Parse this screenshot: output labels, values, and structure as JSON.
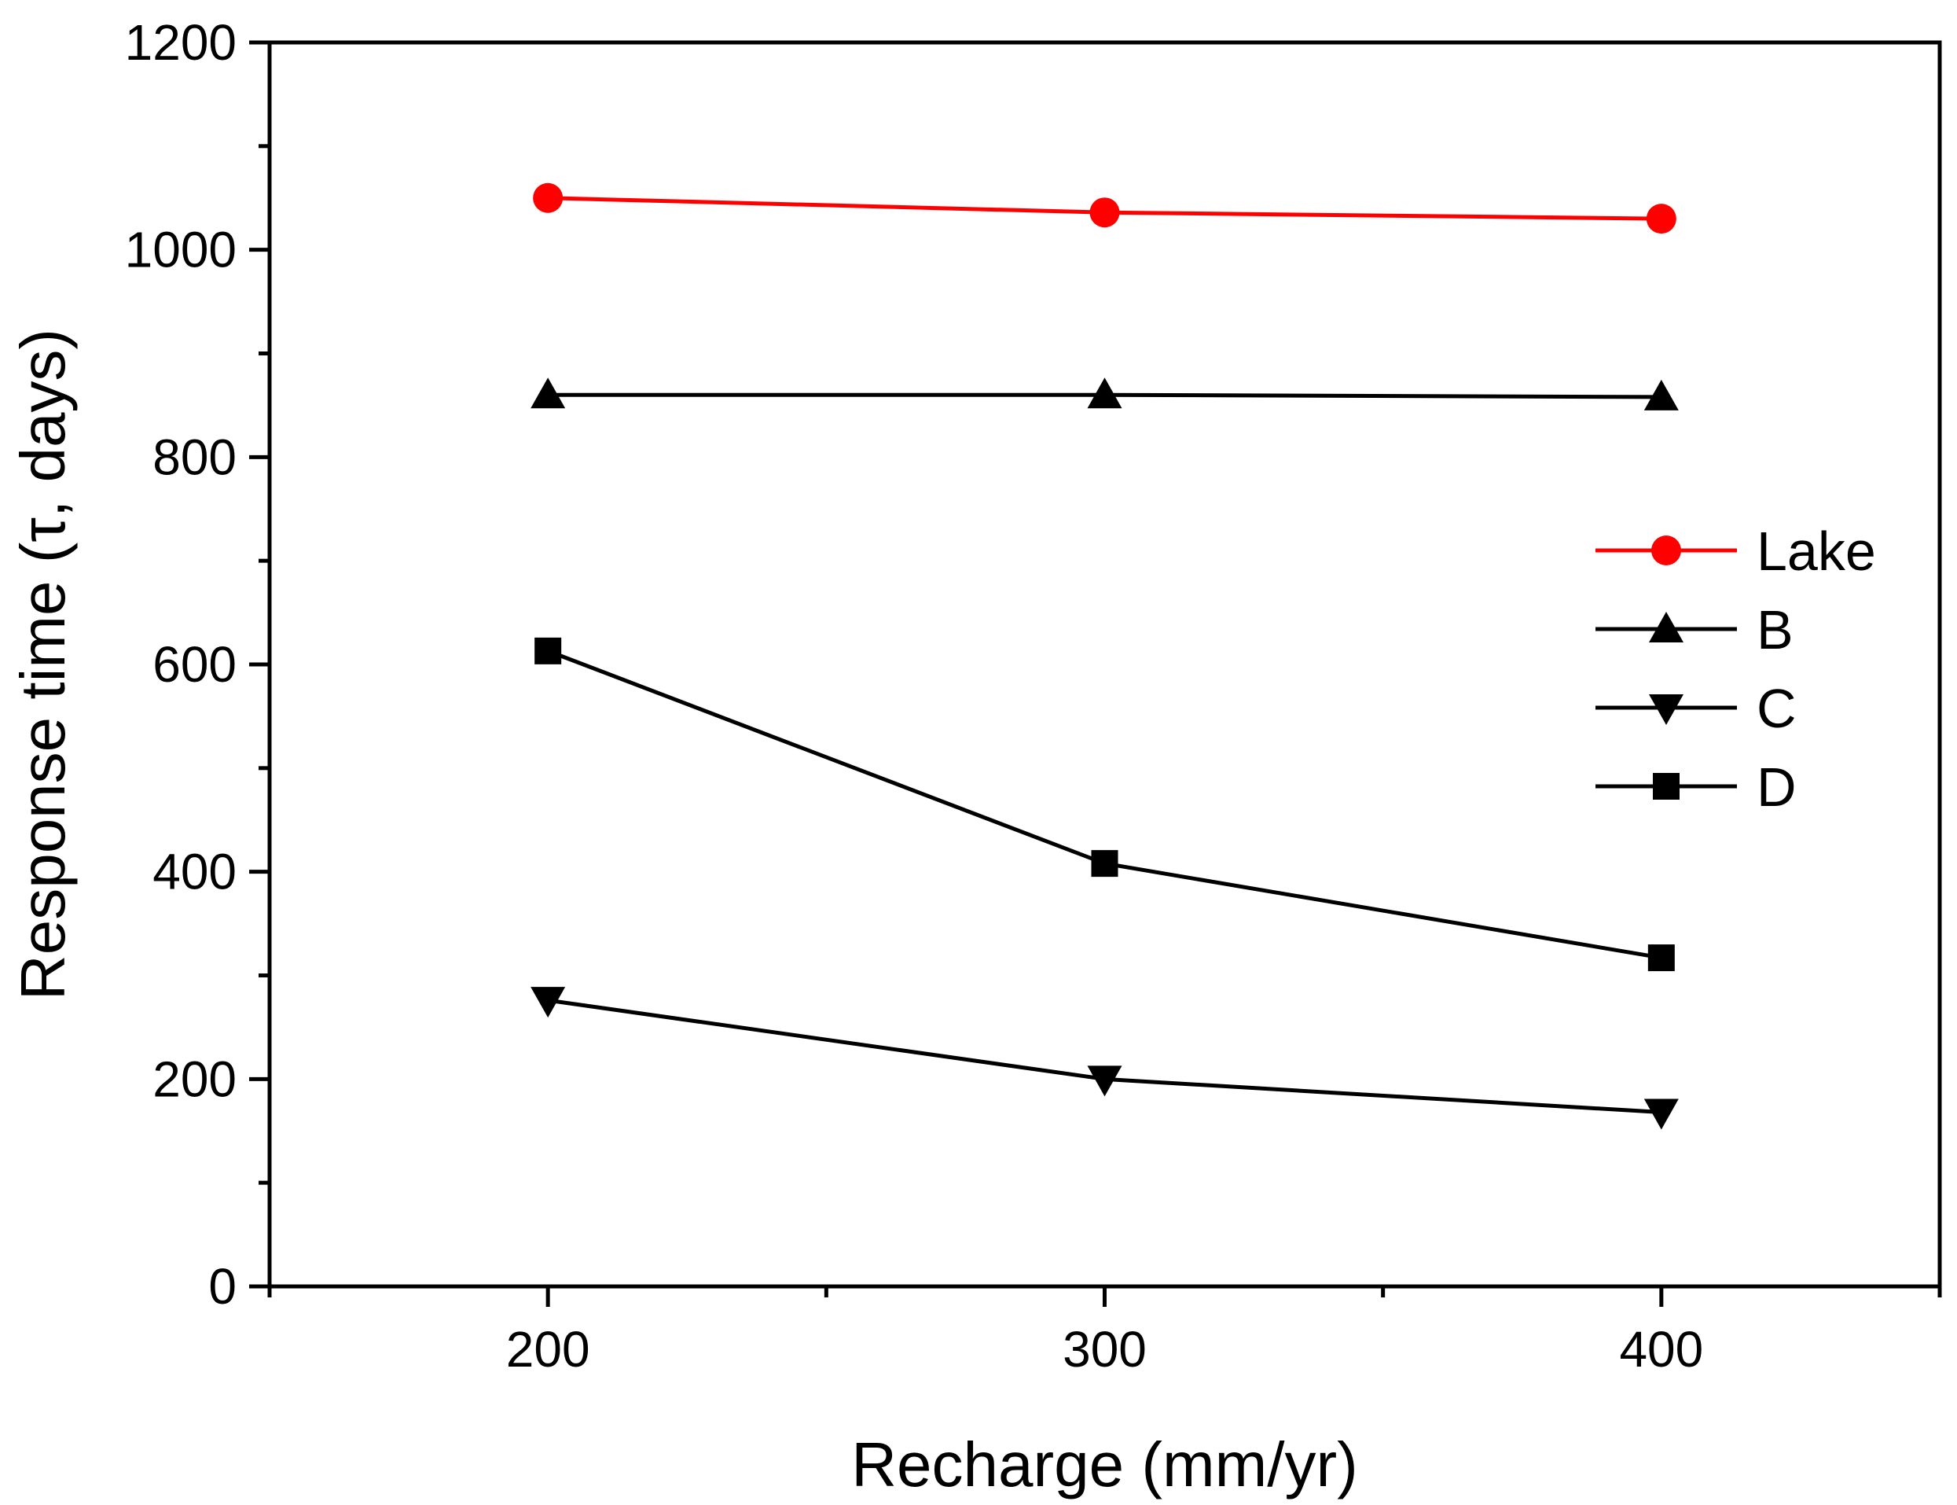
{
  "chart_data": {
    "type": "line",
    "title": "",
    "xlabel": "Recharge (mm/yr)",
    "ylabel": "Response time (τ, days)",
    "x": [
      200,
      300,
      400
    ],
    "xlim": [
      150,
      450
    ],
    "ylim": [
      0,
      1200
    ],
    "xticks": [
      200,
      300,
      400
    ],
    "yticks": [
      0,
      200,
      400,
      600,
      800,
      1000,
      1200
    ],
    "grid": false,
    "legend_position": "right",
    "series": [
      {
        "name": "Lake",
        "values": [
          1050,
          1036,
          1030
        ],
        "color": "#ff0000",
        "marker": "circle"
      },
      {
        "name": "B",
        "values": [
          860,
          860,
          858
        ],
        "color": "#000000",
        "marker": "triangle-up"
      },
      {
        "name": "C",
        "values": [
          276,
          200,
          168
        ],
        "color": "#000000",
        "marker": "triangle-down"
      },
      {
        "name": "D",
        "values": [
          613,
          408,
          317
        ],
        "color": "#000000",
        "marker": "square"
      }
    ]
  }
}
